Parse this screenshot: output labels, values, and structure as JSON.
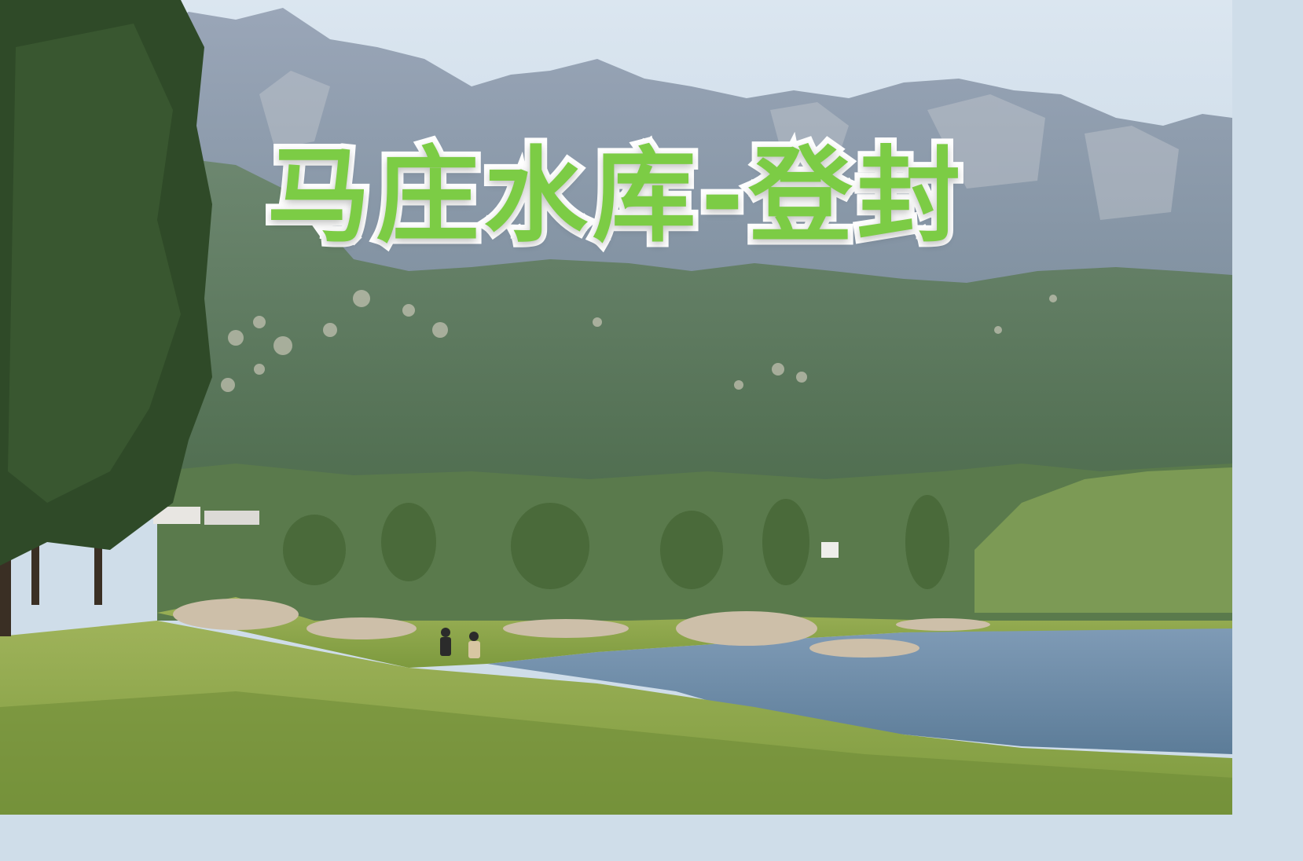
{
  "overlay": {
    "title": "马庄水库-登封",
    "title_color": "#7ccc45",
    "outline_color": "#ffffff"
  },
  "colors": {
    "sky": "#d3e0ec",
    "far_mountains": "#8e9cae",
    "mid_hills": "#5f7a62",
    "forest": "#5d7f4f",
    "water": "#6a8aa6",
    "grass_near": "#8aa34a",
    "tree_dark": "#2f4a28",
    "rocks": "#c9b9a4"
  }
}
